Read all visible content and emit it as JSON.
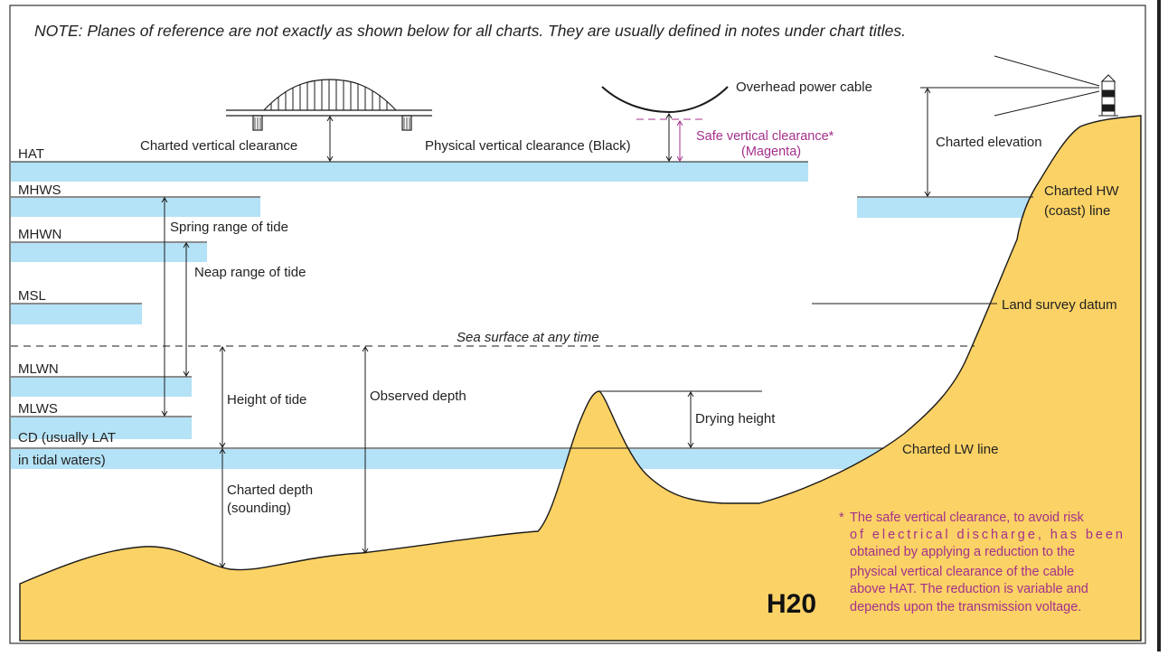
{
  "note": "NOTE: Planes of reference are not exactly as shown below for all charts. They are usually defined in notes under chart titles.",
  "figure_code": "H20",
  "colors": {
    "water": "#b4e2f6",
    "land": "#fbd265",
    "line": "#1a1a1a",
    "magenta": "#a4308c"
  },
  "levels": {
    "hat": "HAT",
    "mhws": "MHWS",
    "mhwn": "MHWN",
    "msl": "MSL",
    "mlwn": "MLWN",
    "mlws": "MLWS",
    "cd_line1": "CD (usually LAT",
    "cd_line2": "in tidal waters)"
  },
  "labels": {
    "charted_vertical_clearance": "Charted vertical clearance",
    "physical_vertical_clearance": "Physical vertical clearance (Black)",
    "safe_vertical_clearance_line1": "Safe vertical clearance*",
    "safe_vertical_clearance_line2": "(Magenta)",
    "overhead_power_cable": "Overhead power cable",
    "charted_elevation": "Charted elevation",
    "charted_hw_line1": "Charted HW",
    "charted_hw_line2": "(coast) line",
    "spring_range": "Spring range of tide",
    "neap_range": "Neap range of tide",
    "land_survey_datum": "Land survey datum",
    "sea_surface": "Sea surface at any time",
    "height_of_tide": "Height of tide",
    "observed_depth": "Observed depth",
    "drying_height": "Drying height",
    "charted_lw_line": "Charted LW line",
    "charted_depth_line1": "Charted depth",
    "charted_depth_line2": "(sounding)"
  },
  "footnote": {
    "star": "*",
    "lines": [
      "The safe vertical clearance, to avoid risk",
      "of electrical discharge, has been",
      "obtained by applying a reduction to the",
      "physical vertical clearance of the cable",
      "above HAT. The reduction is variable and",
      "depends upon the transmission voltage."
    ]
  }
}
